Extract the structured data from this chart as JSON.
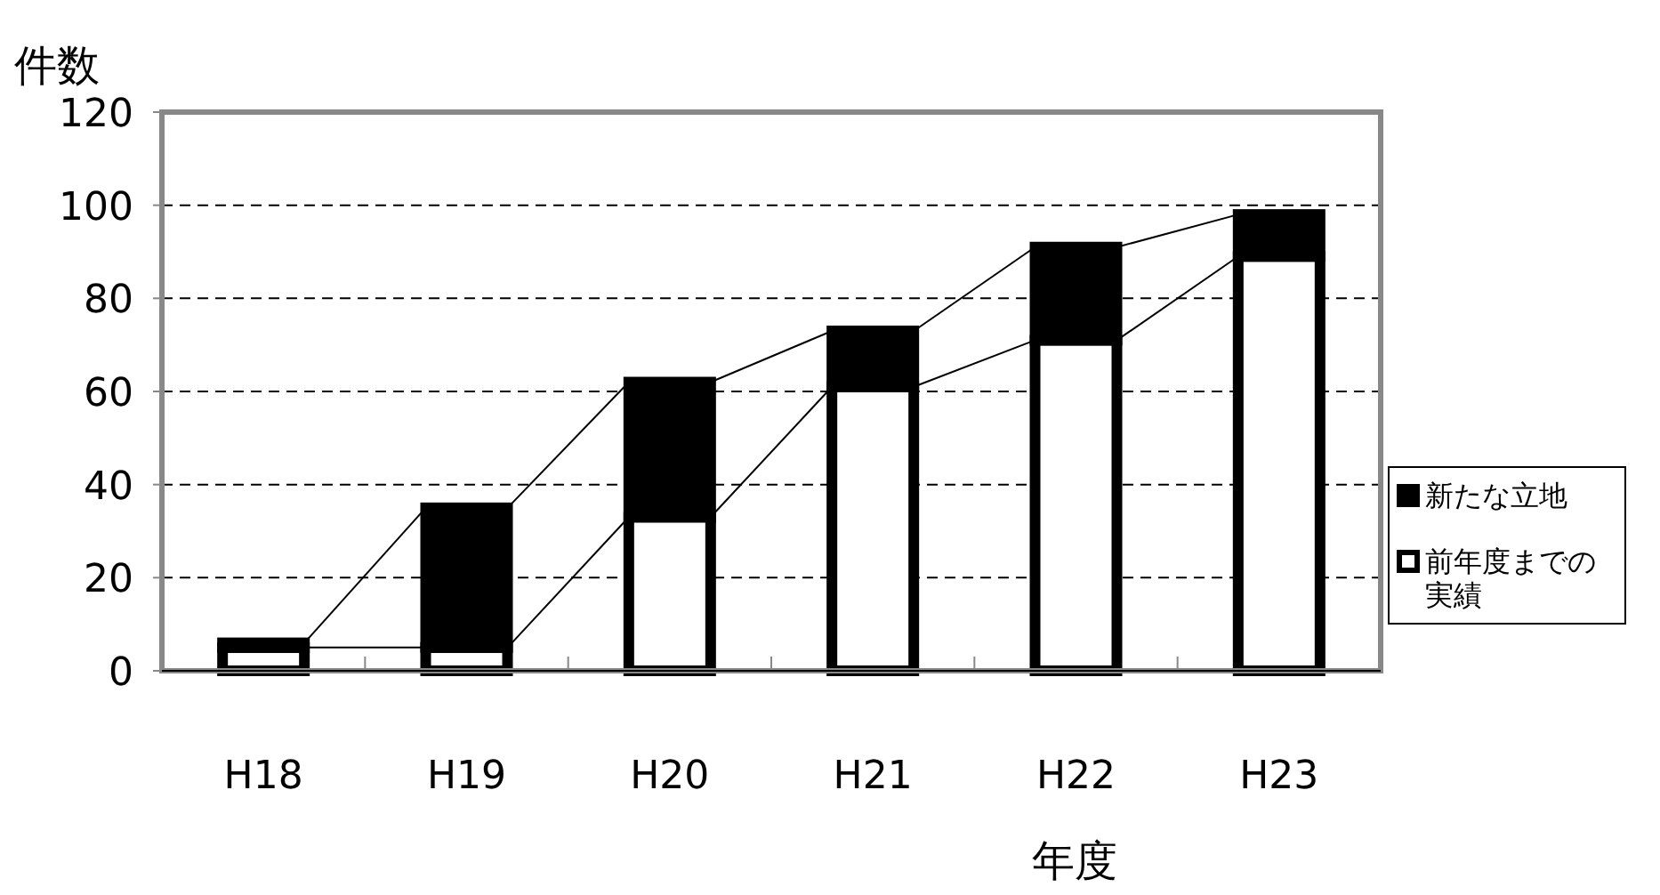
{
  "chart_data": {
    "type": "bar",
    "stacked": true,
    "ylabel": "件数",
    "xlabel": "年度",
    "categories": [
      "H18",
      "H19",
      "H20",
      "H21",
      "H22",
      "H23"
    ],
    "series": [
      {
        "name": "前年度までの実績",
        "color": "#ffffff",
        "values": [
          5,
          5,
          33,
          61,
          71,
          89
        ]
      },
      {
        "name": "新たな立地",
        "color": "#000000",
        "values": [
          1,
          30,
          29,
          12,
          20,
          9
        ]
      }
    ],
    "ylim": [
      0,
      120
    ],
    "yticks": [
      0,
      20,
      40,
      60,
      80,
      100,
      120
    ],
    "grid": "y",
    "legend": "right"
  }
}
